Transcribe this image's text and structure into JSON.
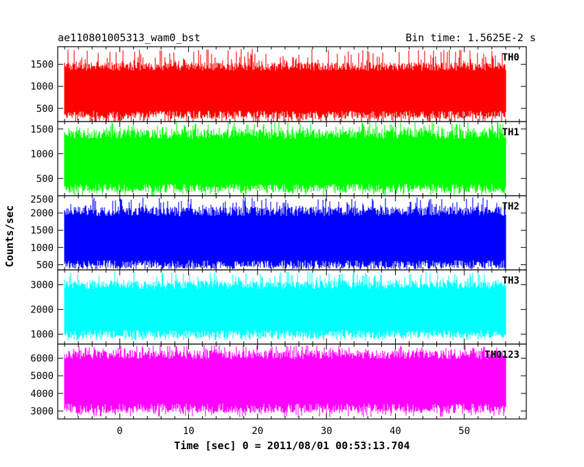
{
  "chart_data": {
    "type": "line",
    "title_left": "ae110801005313_wam0_bst",
    "title_right": "Bin time: 1.5625E-2 s",
    "xlabel": "Time [sec] 0 = 2011/08/01 00:53:13.704",
    "ylabel": "Counts/sec",
    "xlim": [
      -9,
      59
    ],
    "x_ticks": [
      0,
      10,
      20,
      30,
      40,
      50
    ],
    "x_data_range": [
      -8,
      56
    ],
    "bin_time": 0.015625,
    "panels": [
      {
        "name": "TH0",
        "color": "#ff0000",
        "ylim": [
          200,
          1900
        ],
        "y_ticks": [
          500,
          1000,
          1500
        ],
        "mean": 900,
        "typical_range": [
          350,
          1450
        ],
        "peak_range": [
          150,
          1850
        ]
      },
      {
        "name": "TH1",
        "color": "#00ff00",
        "ylim": [
          150,
          1650
        ],
        "y_ticks": [
          500,
          1000,
          1500
        ],
        "mean": 820,
        "typical_range": [
          300,
          1400
        ],
        "peak_range": [
          150,
          1650
        ]
      },
      {
        "name": "TH2",
        "color": "#0000ff",
        "ylim": [
          350,
          2500
        ],
        "y_ticks": [
          500,
          1000,
          1500,
          2000,
          2500
        ],
        "mean": 1250,
        "typical_range": [
          500,
          2050
        ],
        "peak_range": [
          380,
          2450
        ]
      },
      {
        "name": "TH3",
        "color": "#00ffff",
        "ylim": [
          600,
          3600
        ],
        "y_ticks": [
          1000,
          2000,
          3000
        ],
        "mean": 2000,
        "typical_range": [
          1000,
          3000
        ],
        "peak_range": [
          750,
          3550
        ]
      },
      {
        "name": "TH0123",
        "color": "#ff00ff",
        "ylim": [
          2550,
          6800
        ],
        "y_ticks": [
          3000,
          4000,
          5000,
          6000
        ],
        "mean": 4700,
        "typical_range": [
          3150,
          6200
        ],
        "peak_range": [
          2650,
          6750
        ]
      }
    ],
    "grid": false,
    "legend": "panel labels top-right"
  }
}
